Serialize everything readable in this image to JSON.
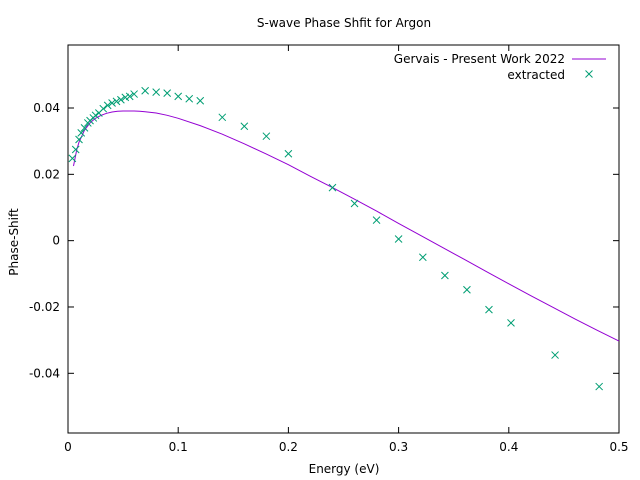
{
  "chart_data": {
    "type": "scatter",
    "title": "S-wave Phase Shfit for Argon",
    "xlabel": "Energy (eV)",
    "ylabel": "Phase-Shift",
    "xlim": [
      0,
      0.5
    ],
    "ylim": [
      -0.058,
      0.059
    ],
    "xticks": [
      0,
      0.1,
      0.2,
      0.3,
      0.4,
      0.5
    ],
    "xtick_labels": [
      "0",
      "0.1",
      "0.2",
      "0.3",
      "0.4",
      "0.5"
    ],
    "yticks": [
      -0.04,
      -0.02,
      0,
      0.02,
      0.04
    ],
    "ytick_labels": [
      "-0.04",
      "-0.02",
      "0",
      "0.02",
      "0.04"
    ],
    "grid": false,
    "legend_position": "top-right",
    "series": [
      {
        "name": "Gervais - Present Work 2022",
        "kind": "line",
        "color": "#9400d3",
        "x": [
          0.005,
          0.008,
          0.01,
          0.015,
          0.02,
          0.025,
          0.03,
          0.035,
          0.04,
          0.045,
          0.05,
          0.055,
          0.06,
          0.065,
          0.07,
          0.08,
          0.09,
          0.1,
          0.12,
          0.14,
          0.16,
          0.18,
          0.2,
          0.22,
          0.24,
          0.26,
          0.28,
          0.3,
          0.32,
          0.34,
          0.36,
          0.38,
          0.4,
          0.42,
          0.44,
          0.46,
          0.48,
          0.5
        ],
        "y": [
          0.0225,
          0.0275,
          0.0297,
          0.0333,
          0.0355,
          0.0369,
          0.0378,
          0.0384,
          0.0388,
          0.039,
          0.0391,
          0.0391,
          0.0391,
          0.039,
          0.0389,
          0.0385,
          0.0378,
          0.0369,
          0.0347,
          0.0321,
          0.0292,
          0.0261,
          0.0229,
          0.0194,
          0.016,
          0.0125,
          0.0089,
          0.0052,
          0.0016,
          -0.0021,
          -0.0057,
          -0.0094,
          -0.013,
          -0.0166,
          -0.0201,
          -0.0236,
          -0.027,
          -0.0303
        ]
      },
      {
        "name": "extracted",
        "kind": "points",
        "marker": "x",
        "color": "#009e73",
        "x": [
          0.004,
          0.007,
          0.01,
          0.012,
          0.015,
          0.018,
          0.02,
          0.023,
          0.025,
          0.028,
          0.032,
          0.036,
          0.04,
          0.044,
          0.048,
          0.052,
          0.056,
          0.06,
          0.07,
          0.08,
          0.09,
          0.1,
          0.11,
          0.12,
          0.14,
          0.16,
          0.18,
          0.2,
          0.24,
          0.26,
          0.28,
          0.3,
          0.322,
          0.342,
          0.362,
          0.382,
          0.402,
          0.442,
          0.482
        ],
        "y": [
          0.0248,
          0.0275,
          0.0305,
          0.0325,
          0.034,
          0.0355,
          0.0362,
          0.037,
          0.0378,
          0.0385,
          0.0398,
          0.0408,
          0.0415,
          0.042,
          0.0425,
          0.0432,
          0.0435,
          0.0442,
          0.0452,
          0.0448,
          0.0445,
          0.0435,
          0.0428,
          0.0422,
          0.0372,
          0.0345,
          0.0315,
          0.0262,
          0.016,
          0.0112,
          0.0062,
          0.0005,
          -0.005,
          -0.0105,
          -0.0148,
          -0.0208,
          -0.0248,
          -0.0345,
          -0.044
        ]
      }
    ]
  }
}
